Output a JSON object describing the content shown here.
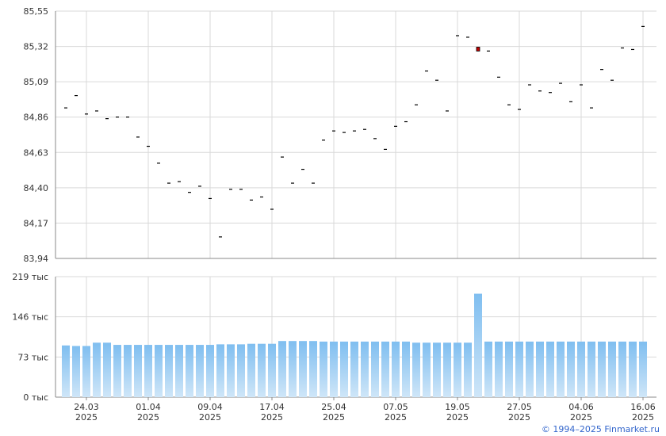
{
  "colors": {
    "grid": "#d9d9d9",
    "axis": "#888888",
    "text": "#333333",
    "marker": "#000000",
    "highlight": "#c00000",
    "bar_top": "#7fbef0",
    "bar_bottom": "#cfe6f8",
    "credit": "#3366cc"
  },
  "credit": "© 1994–2025 Finmarket.ru",
  "chart_data": [
    {
      "type": "scatter",
      "ylim": [
        83.94,
        85.55
      ],
      "y_ticks": [
        "85,55",
        "85,32",
        "85,09",
        "84,86",
        "84,63",
        "84,40",
        "84,17",
        "83,94"
      ],
      "highlight_index": 40,
      "values": [
        84.92,
        85.0,
        84.88,
        84.9,
        84.85,
        84.86,
        84.86,
        84.73,
        84.67,
        84.56,
        84.43,
        84.44,
        84.37,
        84.41,
        84.33,
        84.08,
        84.39,
        84.39,
        84.32,
        84.34,
        84.26,
        84.6,
        84.43,
        84.52,
        84.43,
        84.71,
        84.77,
        84.76,
        84.77,
        84.78,
        84.72,
        84.65,
        84.8,
        84.83,
        84.94,
        85.16,
        85.1,
        84.9,
        85.39,
        85.38,
        85.3,
        85.29,
        85.12,
        84.94,
        84.91,
        85.07,
        85.03,
        85.02,
        85.08,
        84.96,
        85.07,
        84.92,
        85.17,
        85.1,
        85.31,
        85.3,
        85.45
      ]
    },
    {
      "type": "bar",
      "ylim": [
        0,
        219
      ],
      "y_ticks": [
        "219 тыс",
        "146 тыс",
        "73 тыс",
        "0 тыс"
      ],
      "values": [
        94,
        93,
        93,
        99,
        99,
        95,
        95,
        95,
        95,
        95,
        95,
        95,
        95,
        95,
        95,
        96,
        96,
        96,
        97,
        97,
        97,
        102,
        102,
        102,
        102,
        101,
        101,
        101,
        101,
        101,
        101,
        101,
        101,
        101,
        99,
        99,
        99,
        99,
        99,
        99,
        188,
        101,
        101,
        101,
        101,
        101,
        101,
        101,
        101,
        101,
        101,
        101,
        101,
        101,
        101,
        101,
        101
      ]
    }
  ],
  "x_labels": [
    {
      "date": "24.03",
      "year": "2025",
      "index": 2
    },
    {
      "date": "01.04",
      "year": "2025",
      "index": 8
    },
    {
      "date": "09.04",
      "year": "2025",
      "index": 14
    },
    {
      "date": "17.04",
      "year": "2025",
      "index": 20
    },
    {
      "date": "25.04",
      "year": "2025",
      "index": 26
    },
    {
      "date": "07.05",
      "year": "2025",
      "index": 32
    },
    {
      "date": "19.05",
      "year": "2025",
      "index": 38
    },
    {
      "date": "27.05",
      "year": "2025",
      "index": 44
    },
    {
      "date": "04.06",
      "year": "2025",
      "index": 50
    },
    {
      "date": "16.06",
      "year": "2025",
      "index": 56
    }
  ]
}
